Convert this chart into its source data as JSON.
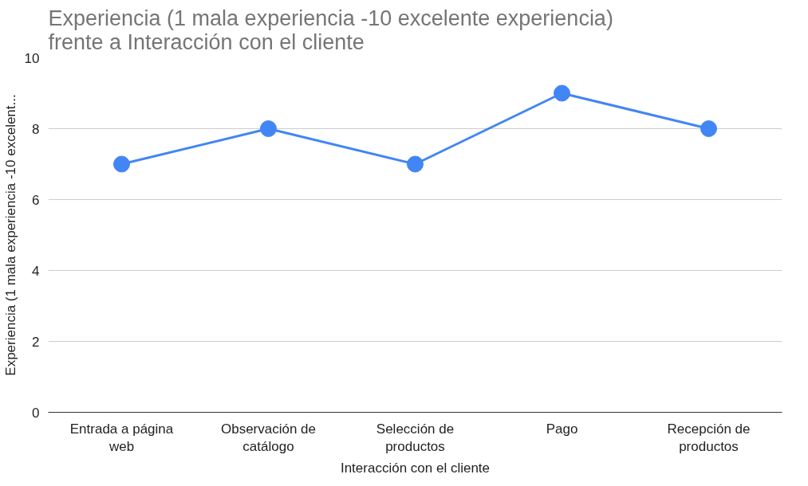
{
  "chart_data": {
    "type": "line",
    "title": "Experiencia (1 mala experiencia -10 excelente experiencia) frente a Interacción con el cliente",
    "xlabel": "Interacción con el cliente",
    "ylabel": "Experiencia (1 mala experiencia -10 excelent...",
    "categories": [
      "Entrada a página web",
      "Observación de catálogo",
      "Selección de productos",
      "Pago",
      "Recepción de productos"
    ],
    "series": [
      {
        "color": "#4285f4",
        "values": [
          7,
          8,
          7,
          9,
          8
        ]
      }
    ],
    "ylim": [
      0,
      10
    ],
    "yticks": [
      0,
      2,
      4,
      6,
      8,
      10
    ],
    "grid": "y",
    "marker": "circle",
    "line_style": "solid"
  }
}
